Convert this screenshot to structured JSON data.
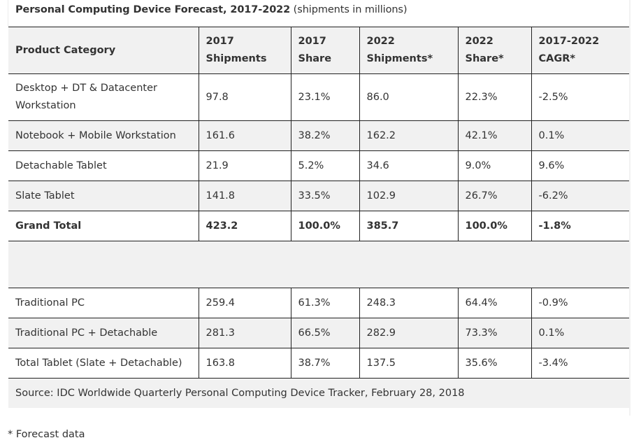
{
  "title": {
    "bold": "Personal Computing Device Forecast, 2017-2022",
    "normal": " (shipments in millions)"
  },
  "table": {
    "headers": [
      {
        "line1": "Product Category",
        "line2": ""
      },
      {
        "line1": "2017",
        "line2": "Shipments"
      },
      {
        "line1": "2017",
        "line2": "Share"
      },
      {
        "line1": "2022",
        "line2": "Shipments*"
      },
      {
        "line1": "2022",
        "line2": "Share*"
      },
      {
        "line1": "2017-2022",
        "line2": "CAGR*"
      }
    ],
    "rows": [
      [
        "Desktop + DT & Datacenter Workstation",
        "97.8",
        "23.1%",
        "86.0",
        "22.3%",
        "-2.5%"
      ],
      [
        "Notebook + Mobile Workstation",
        "161.6",
        "38.2%",
        "162.2",
        "42.1%",
        "0.1%"
      ],
      [
        "Detachable Tablet",
        "21.9",
        "5.2%",
        "34.6",
        "9.0%",
        "9.6%"
      ],
      [
        "Slate Tablet",
        "141.8",
        "33.5%",
        "102.9",
        "26.7%",
        "-6.2%"
      ],
      [
        "Grand Total",
        "423.2",
        "100.0%",
        "385.7",
        "100.0%",
        "-1.8%"
      ]
    ],
    "summary_rows": [
      [
        "Traditional PC",
        "259.4",
        "61.3%",
        "248.3",
        "64.4%",
        "-0.9%"
      ],
      [
        "Traditional PC + Detachable",
        "281.3",
        "66.5%",
        "282.9",
        "73.3%",
        "0.1%"
      ],
      [
        "Total Tablet (Slate + Detachable)",
        "163.8",
        "38.7%",
        "137.5",
        "35.6%",
        "-3.4%"
      ]
    ],
    "source": "Source: IDC Worldwide Quarterly Personal Computing Device Tracker, February 28, 2018"
  },
  "footnote": "* Forecast data",
  "colors": {
    "stripe": "#f1f1f1",
    "border": "#222222",
    "text": "#333333"
  }
}
